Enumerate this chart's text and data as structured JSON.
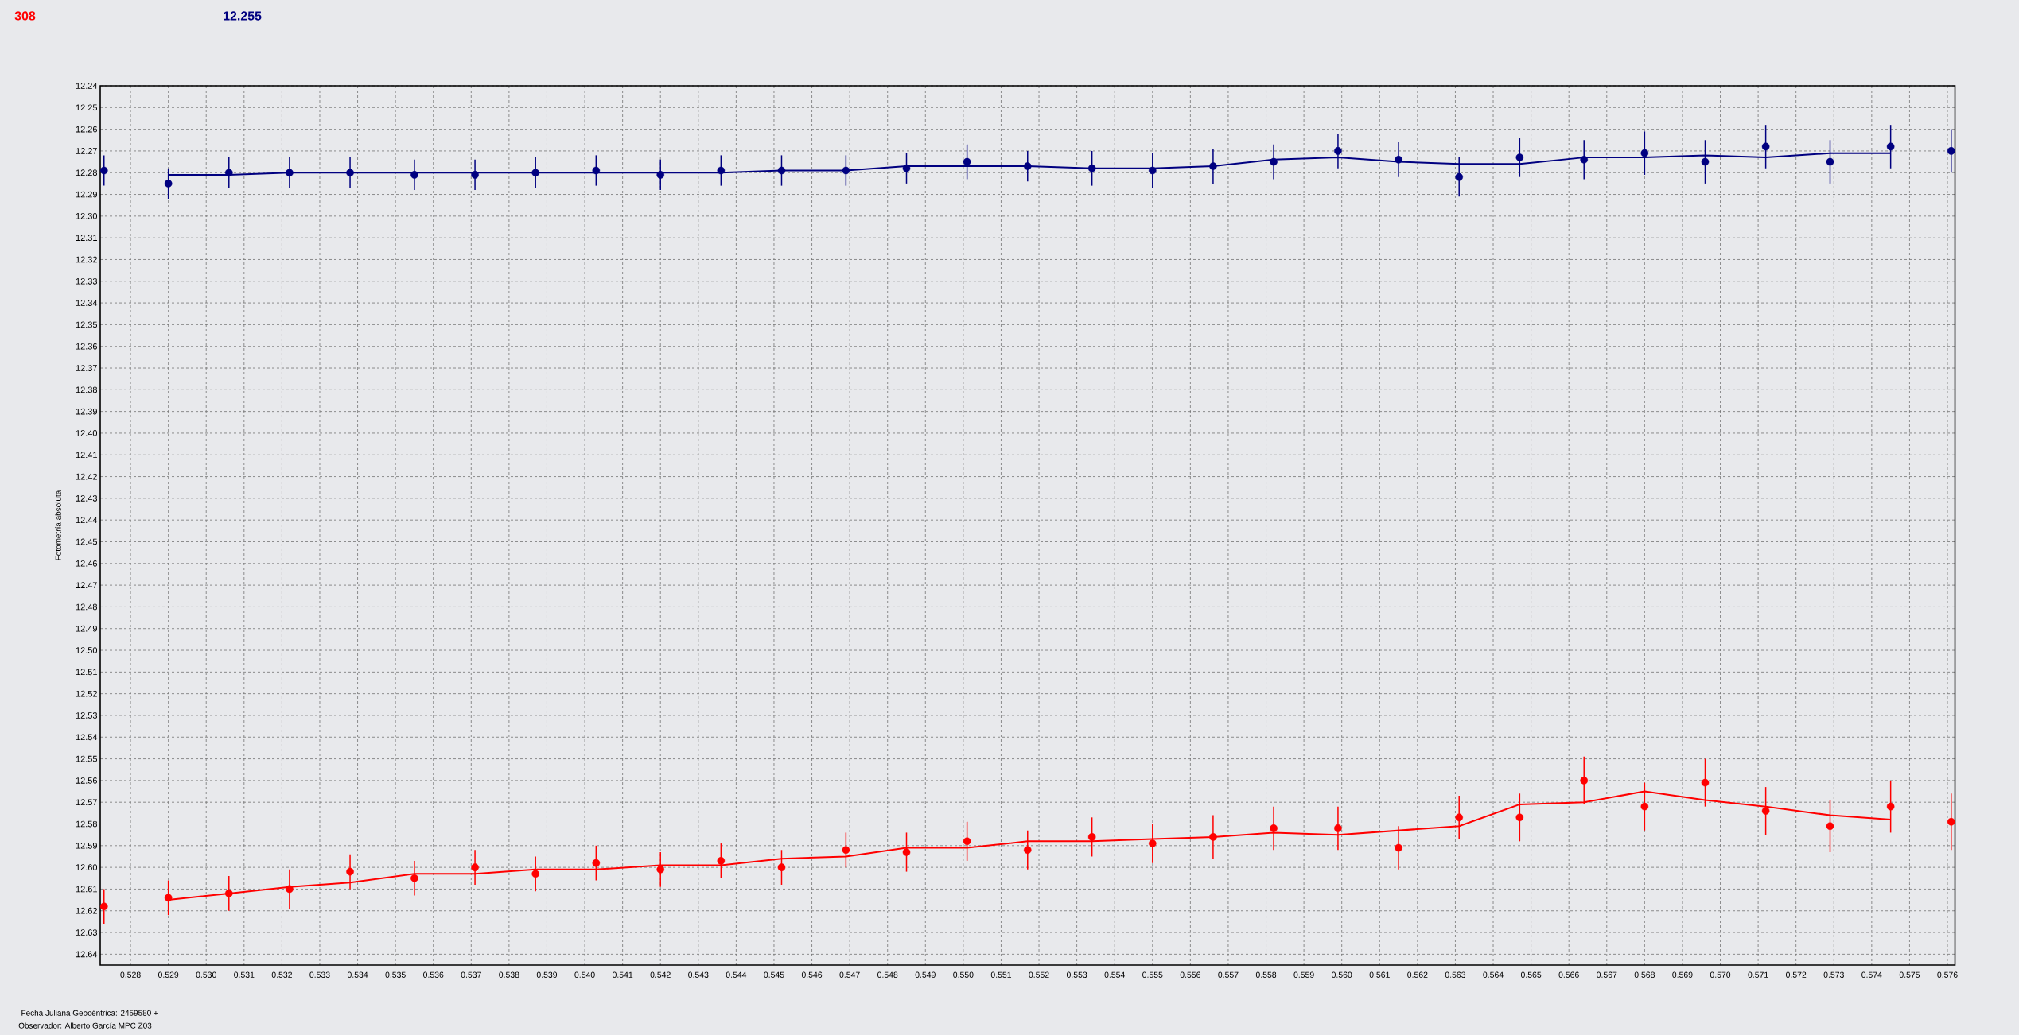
{
  "chart_data": {
    "type": "scatter",
    "xlabel": "Fecha Juliana Geocéntrica: 2459580 +",
    "ylabel": "Fotometría absoluta",
    "annotations": [
      "Observador: Alberto García MPC Z03"
    ],
    "xlim": [
      0.5272,
      0.5762
    ],
    "xticks": [
      0.528,
      0.529,
      {
        "value": 0.53,
        "label": "0.530"
      },
      0.531,
      0.532,
      0.533,
      0.534,
      0.535,
      0.536,
      0.537,
      0.538,
      0.539,
      {
        "value": 0.54,
        "label": "0.540"
      },
      0.541,
      0.542,
      0.543,
      0.544,
      0.545,
      0.546,
      0.547,
      0.548,
      0.549,
      {
        "value": 0.55,
        "label": "0.550"
      },
      0.551,
      0.552,
      0.553,
      0.554,
      0.555,
      0.556,
      0.557,
      0.558,
      0.559,
      {
        "value": 0.56,
        "label": "0.560"
      },
      0.561,
      0.562,
      0.563,
      0.564,
      0.565,
      0.566,
      0.567,
      0.568,
      0.569,
      {
        "value": 0.57,
        "label": "0.570"
      },
      0.571,
      0.572,
      0.573,
      0.574,
      0.575,
      0.576
    ],
    "ylim": [
      12.645,
      12.24
    ],
    "yticks": [
      12.24,
      12.25,
      12.26,
      12.27,
      12.28,
      12.29,
      {
        "value": 12.3,
        "label": "12.30"
      },
      12.31,
      12.32,
      12.33,
      12.34,
      12.35,
      12.36,
      12.37,
      12.38,
      12.39,
      {
        "value": 12.4,
        "label": "12.40"
      },
      12.41,
      12.42,
      12.43,
      12.44,
      12.45,
      12.46,
      12.47,
      12.48,
      12.49,
      {
        "value": 12.5,
        "label": "12.50"
      },
      12.51,
      12.52,
      12.53,
      12.54,
      12.55,
      12.56,
      12.57,
      12.58,
      12.59,
      {
        "value": 12.6,
        "label": "12.60"
      },
      12.61,
      12.62,
      12.63,
      12.64
    ],
    "grid": true,
    "legend": "top left",
    "marker": "circle",
    "series": [
      {
        "name": "308",
        "color": "#ff0000",
        "x": [
          0.5273,
          0.529,
          0.5306,
          0.5322,
          0.5338,
          0.5355,
          0.5371,
          0.5387,
          0.5403,
          0.542,
          0.5436,
          0.5452,
          0.5469,
          0.5485,
          0.5501,
          0.5517,
          0.5534,
          0.555,
          0.5566,
          0.5582,
          0.5599,
          0.5615,
          0.5631,
          0.5647,
          0.5664,
          0.568,
          0.5696,
          0.5712,
          0.5729,
          0.5745,
          0.5761
        ],
        "values": [
          12.618,
          12.614,
          12.612,
          12.61,
          12.602,
          12.605,
          12.6,
          12.603,
          12.598,
          12.601,
          12.597,
          12.6,
          12.592,
          12.593,
          12.588,
          12.592,
          12.586,
          12.589,
          12.586,
          12.582,
          12.582,
          12.591,
          12.577,
          12.577,
          12.56,
          12.572,
          12.561,
          12.574,
          12.581,
          12.572,
          12.579
        ],
        "errors": [
          0.008,
          0.008,
          0.008,
          0.009,
          0.008,
          0.008,
          0.008,
          0.008,
          0.008,
          0.008,
          0.008,
          0.008,
          0.008,
          0.009,
          0.009,
          0.009,
          0.009,
          0.009,
          0.01,
          0.01,
          0.01,
          0.01,
          0.01,
          0.011,
          0.011,
          0.011,
          0.011,
          0.011,
          0.012,
          0.012,
          0.013
        ]
      },
      {
        "type": "line",
        "color": "#ff0000",
        "marker": "none",
        "x": [
          0.529,
          0.5306,
          0.5322,
          0.5338,
          0.5355,
          0.5371,
          0.5387,
          0.5403,
          0.542,
          0.5436,
          0.5452,
          0.5469,
          0.5485,
          0.5501,
          0.5517,
          0.5534,
          0.555,
          0.5566,
          0.5582,
          0.5599,
          0.5615,
          0.5631,
          0.5647,
          0.5664,
          0.568,
          0.5696,
          0.5712,
          0.5729,
          0.5745
        ],
        "values": [
          12.615,
          12.612,
          12.609,
          12.607,
          12.603,
          12.603,
          12.601,
          12.601,
          12.599,
          12.599,
          12.596,
          12.595,
          12.591,
          12.591,
          12.588,
          12.588,
          12.587,
          12.586,
          12.584,
          12.585,
          12.583,
          12.581,
          12.571,
          12.57,
          12.565,
          12.569,
          12.572,
          12.576,
          12.578
        ]
      },
      {
        "name": "12.255",
        "color": "#000080",
        "x": [
          0.5273,
          0.529,
          0.5306,
          0.5322,
          0.5338,
          0.5355,
          0.5371,
          0.5387,
          0.5403,
          0.542,
          0.5436,
          0.5452,
          0.5469,
          0.5485,
          0.5501,
          0.5517,
          0.5534,
          0.555,
          0.5566,
          0.5582,
          0.5599,
          0.5615,
          0.5631,
          0.5647,
          0.5664,
          0.568,
          0.5696,
          0.5712,
          0.5729,
          0.5745,
          0.5761
        ],
        "values": [
          12.279,
          12.285,
          12.28,
          12.28,
          12.28,
          12.281,
          12.281,
          12.28,
          12.279,
          12.281,
          12.279,
          12.279,
          12.279,
          12.278,
          12.275,
          12.277,
          12.278,
          12.279,
          12.277,
          12.275,
          12.27,
          12.274,
          12.282,
          12.273,
          12.274,
          12.271,
          12.275,
          12.268,
          12.275,
          12.268,
          12.27
        ],
        "errors": [
          0.007,
          0.007,
          0.007,
          0.007,
          0.007,
          0.007,
          0.007,
          0.007,
          0.007,
          0.007,
          0.007,
          0.007,
          0.007,
          0.007,
          0.008,
          0.007,
          0.008,
          0.008,
          0.008,
          0.008,
          0.008,
          0.008,
          0.009,
          0.009,
          0.009,
          0.01,
          0.01,
          0.01,
          0.01,
          0.01,
          0.01
        ]
      },
      {
        "type": "line",
        "color": "#000080",
        "marker": "none",
        "x": [
          0.529,
          0.5306,
          0.5322,
          0.5338,
          0.5355,
          0.5371,
          0.5387,
          0.5403,
          0.542,
          0.5436,
          0.5452,
          0.5469,
          0.5485,
          0.5501,
          0.5517,
          0.5534,
          0.555,
          0.5566,
          0.5582,
          0.5599,
          0.5615,
          0.5631,
          0.5647,
          0.5664,
          0.568,
          0.5696,
          0.5712,
          0.5729,
          0.5745
        ],
        "values": [
          12.281,
          12.281,
          12.28,
          12.28,
          12.28,
          12.28,
          12.28,
          12.28,
          12.28,
          12.28,
          12.279,
          12.279,
          12.277,
          12.277,
          12.277,
          12.278,
          12.278,
          12.277,
          12.274,
          12.273,
          12.275,
          12.276,
          12.276,
          12.273,
          12.273,
          12.272,
          12.273,
          12.271,
          12.271
        ]
      }
    ]
  }
}
